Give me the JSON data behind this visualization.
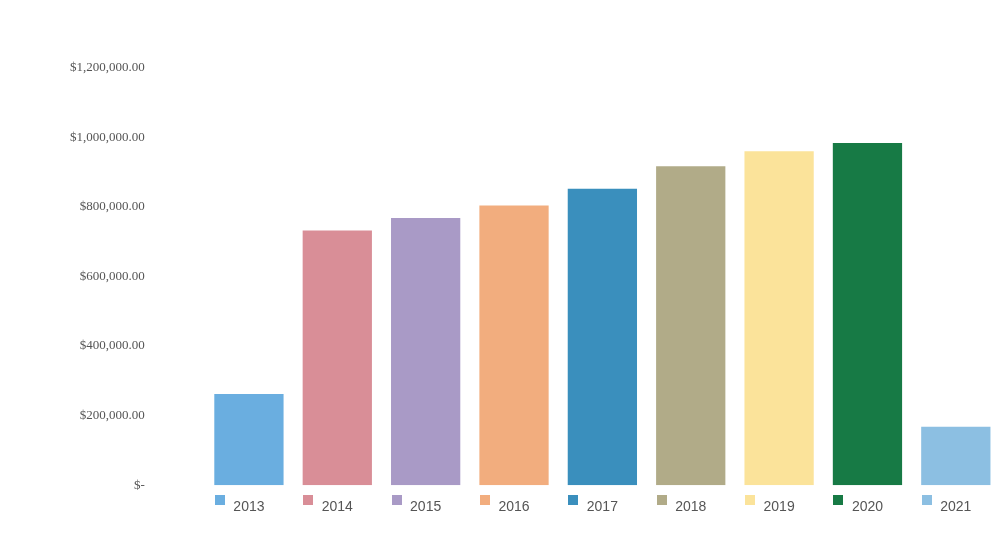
{
  "chart_data": {
    "type": "bar",
    "categories": [
      "2013",
      "2014",
      "2015",
      "2016",
      "2017",
      "2018",
      "2019",
      "2020",
      "2021"
    ],
    "values": [
      262000,
      732000,
      768000,
      804000,
      852000,
      917000,
      960000,
      984000,
      168000
    ],
    "colors": [
      "#6aaee0",
      "#d98e97",
      "#a99ac6",
      "#f2ad7e",
      "#3a8fbd",
      "#b1ab88",
      "#fbe39a",
      "#177a45",
      "#8cbfe2"
    ],
    "ylim": [
      0,
      1200000
    ],
    "yticks": [
      {
        "value": 0,
        "label": "$-"
      },
      {
        "value": 200000,
        "label": "$200,000.00"
      },
      {
        "value": 400000,
        "label": "$400,000.00"
      },
      {
        "value": 600000,
        "label": "$600,000.00"
      },
      {
        "value": 800000,
        "label": "$800,000.00"
      },
      {
        "value": 1000000,
        "label": "$1,000,000.00"
      },
      {
        "value": 1200000,
        "label": "$1,200,000.00"
      }
    ]
  }
}
